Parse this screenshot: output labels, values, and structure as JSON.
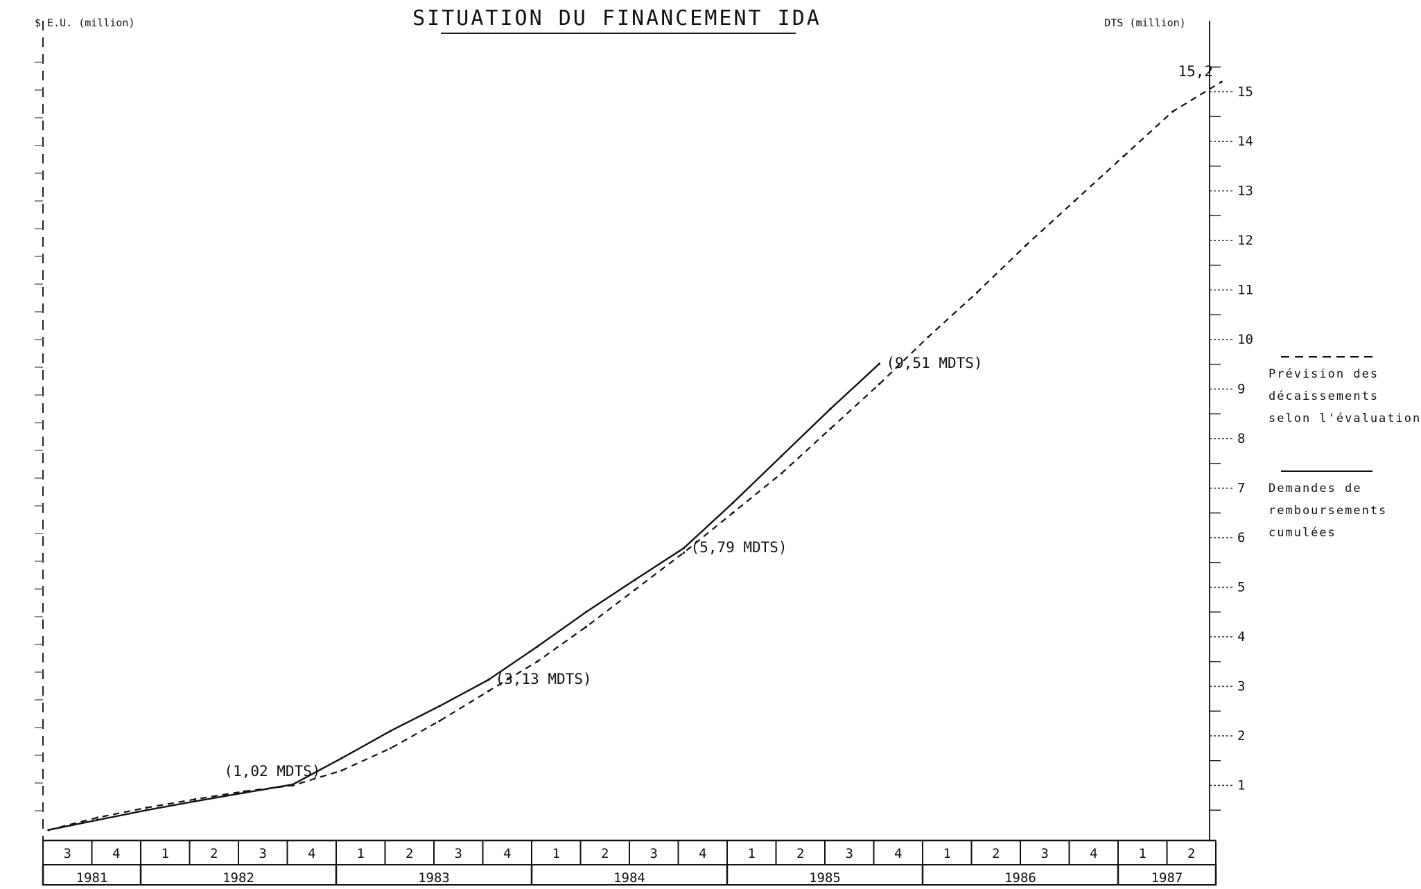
{
  "chart_data": {
    "type": "line",
    "title": "SITUATION DU FINANCEMENT IDA",
    "left_unit": "$ E.U. (million)",
    "right_unit": "DTS (million)",
    "right_yticks": [
      "1",
      "2",
      "3",
      "4",
      "5",
      "6",
      "7",
      "8",
      "9",
      "10",
      "11",
      "12",
      "13",
      "14",
      "15"
    ],
    "ylim": [
      0,
      15.2
    ],
    "x_quarters": [
      {
        "year": "1981",
        "q": "3"
      },
      {
        "year": "1981",
        "q": "4"
      },
      {
        "year": "1982",
        "q": "1"
      },
      {
        "year": "1982",
        "q": "2"
      },
      {
        "year": "1982",
        "q": "3"
      },
      {
        "year": "1982",
        "q": "4"
      },
      {
        "year": "1983",
        "q": "1"
      },
      {
        "year": "1983",
        "q": "2"
      },
      {
        "year": "1983",
        "q": "3"
      },
      {
        "year": "1983",
        "q": "4"
      },
      {
        "year": "1984",
        "q": "1"
      },
      {
        "year": "1984",
        "q": "2"
      },
      {
        "year": "1984",
        "q": "3"
      },
      {
        "year": "1984",
        "q": "4"
      },
      {
        "year": "1985",
        "q": "1"
      },
      {
        "year": "1985",
        "q": "2"
      },
      {
        "year": "1985",
        "q": "3"
      },
      {
        "year": "1985",
        "q": "4"
      },
      {
        "year": "1986",
        "q": "1"
      },
      {
        "year": "1986",
        "q": "2"
      },
      {
        "year": "1986",
        "q": "3"
      },
      {
        "year": "1986",
        "q": "4"
      },
      {
        "year": "1987",
        "q": "1"
      },
      {
        "year": "1987",
        "q": "2"
      }
    ],
    "x_years": [
      {
        "label": "1981",
        "quarters": 2
      },
      {
        "label": "1982",
        "quarters": 4
      },
      {
        "label": "1983",
        "quarters": 4
      },
      {
        "label": "1984",
        "quarters": 4
      },
      {
        "label": "1985",
        "quarters": 4
      },
      {
        "label": "1986",
        "quarters": 4
      },
      {
        "label": "1987",
        "quarters": 2
      }
    ],
    "series": [
      {
        "name": "Prévision des décaissements selon l'évaluation",
        "style": "dashed",
        "points": [
          [
            0,
            0.1
          ],
          [
            1,
            0.35
          ],
          [
            2,
            0.55
          ],
          [
            3,
            0.72
          ],
          [
            4,
            0.88
          ],
          [
            5,
            1.0
          ],
          [
            6,
            1.3
          ],
          [
            7,
            1.75
          ],
          [
            8,
            2.3
          ],
          [
            9,
            2.9
          ],
          [
            10,
            3.5
          ],
          [
            11,
            4.2
          ],
          [
            12,
            4.95
          ],
          [
            13,
            5.7
          ],
          [
            14,
            6.5
          ],
          [
            15,
            7.3
          ],
          [
            16,
            8.2
          ],
          [
            17,
            9.1
          ],
          [
            18,
            10.05
          ],
          [
            19,
            10.95
          ],
          [
            20,
            11.9
          ],
          [
            21,
            12.8
          ],
          [
            22,
            13.7
          ],
          [
            23,
            14.6
          ],
          [
            24,
            15.2
          ]
        ]
      },
      {
        "name": "Demandes de remboursement cumulées",
        "style": "solid",
        "points": [
          [
            0,
            0.1
          ],
          [
            1,
            0.3
          ],
          [
            2,
            0.5
          ],
          [
            3,
            0.68
          ],
          [
            4,
            0.85
          ],
          [
            5,
            1.02
          ],
          [
            6,
            1.55
          ],
          [
            7,
            2.1
          ],
          [
            8,
            2.6
          ],
          [
            9,
            3.13
          ],
          [
            10,
            3.8
          ],
          [
            11,
            4.5
          ],
          [
            12,
            5.15
          ],
          [
            13,
            5.79
          ],
          [
            14,
            6.7
          ],
          [
            15,
            7.65
          ],
          [
            16,
            8.6
          ],
          [
            17,
            9.51
          ]
        ]
      }
    ],
    "annotations": [
      {
        "x": 5,
        "y": 1.02,
        "text": "(1,02 MDTS)"
      },
      {
        "x": 9,
        "y": 3.13,
        "text": "(3,13 MDTS)"
      },
      {
        "x": 13,
        "y": 5.79,
        "text": "(5,79 MDTS)"
      },
      {
        "x": 17,
        "y": 9.51,
        "text": "(9,51 MDTS)"
      },
      {
        "x": 24,
        "y": 15.2,
        "text": "15,2"
      }
    ],
    "legend": {
      "position": "right",
      "items": [
        {
          "style": "dashed",
          "lines": [
            "Prévision des",
            "décaissements",
            "selon l'évaluation"
          ]
        },
        {
          "style": "solid",
          "lines": [
            "Demandes de",
            "remboursements",
            "cumulées"
          ]
        }
      ]
    }
  }
}
